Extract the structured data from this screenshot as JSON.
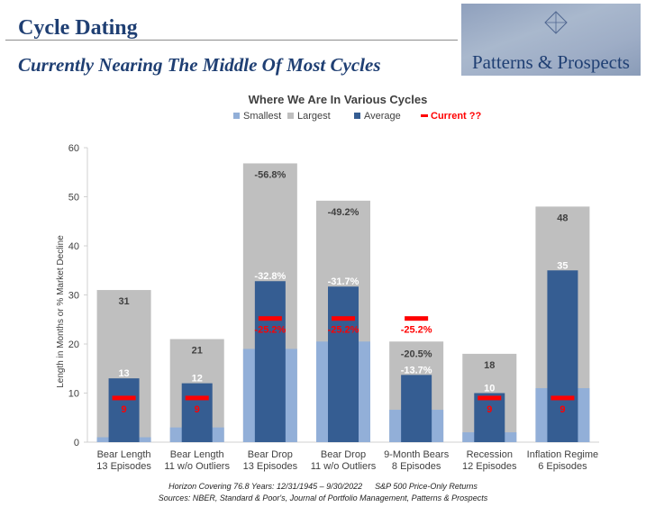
{
  "header": {
    "title": "Cycle Dating",
    "subtitle": "Currently Nearing The Middle Of Most Cycles",
    "logo_text": "Patterns & Prospects"
  },
  "colors": {
    "smallest": "#92afd8",
    "largest": "#bfbfbf",
    "average": "#355d92",
    "current": "#ff0000",
    "title_blue": "#1f3f73"
  },
  "chart_data": {
    "type": "bar",
    "title": "Where We Are In Various Cycles",
    "ylabel": "Length in Months or % Market Decline",
    "ylim": [
      0,
      60
    ],
    "yticks": [
      "0",
      "10",
      "20",
      "30",
      "40",
      "50",
      "60"
    ],
    "legend_position": "top",
    "grid": false,
    "categories": [
      [
        "Bear Length",
        "13 Episodes"
      ],
      [
        "Bear Length",
        "11 w/o Outliers"
      ],
      [
        "Bear Drop",
        "13 Episodes"
      ],
      [
        "Bear Drop",
        "11 w/o Outliers"
      ],
      [
        "9-Month Bears",
        "8 Episodes"
      ],
      [
        "Recession",
        "12 Episodes"
      ],
      [
        "Inflation Regime",
        "6 Episodes"
      ]
    ],
    "series": [
      {
        "name": "Smallest",
        "values": [
          1,
          3,
          19,
          20.5,
          6.6,
          2,
          11
        ]
      },
      {
        "name": "Largest",
        "values": [
          31,
          21,
          56.8,
          49.2,
          20.5,
          18,
          48
        ],
        "labels": [
          "31",
          "21",
          "-56.8%",
          "-49.2%",
          "-20.5%",
          "18",
          "48"
        ]
      },
      {
        "name": "Average",
        "values": [
          13,
          12,
          32.8,
          31.7,
          13.7,
          10,
          35
        ],
        "labels": [
          "13",
          "12",
          "-32.8%",
          "-31.7%",
          "-13.7%",
          "10",
          "35"
        ]
      },
      {
        "name": "Current ??",
        "values": [
          9,
          9,
          25.2,
          25.2,
          25.2,
          9,
          9
        ],
        "labels": [
          "9",
          "9",
          "-25.2%",
          "-25.2%",
          "-25.2%",
          "9",
          "9"
        ]
      }
    ]
  },
  "footer": {
    "line1_left": "Horizon Covering 76.8 Years: 12/31/1945 – 9/30/2022",
    "line1_right": "S&P 500 Price-Only Returns",
    "line2": "Sources: NBER, Standard & Poor's, Journal of Portfolio Management, Patterns & Prospects"
  }
}
